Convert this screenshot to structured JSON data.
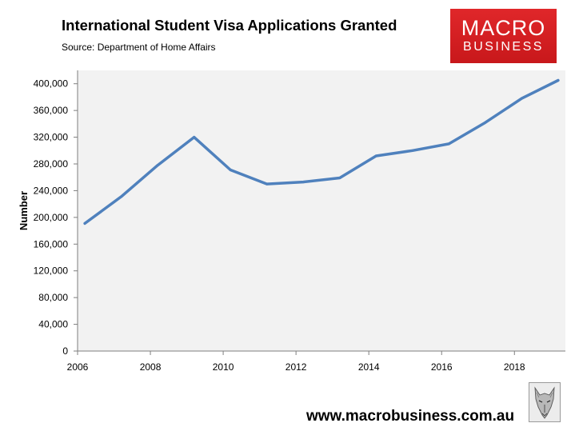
{
  "header": {
    "title": "International Student Visa Applications Granted",
    "source": "Source: Department of Home Affairs"
  },
  "logo": {
    "line1": "MACRO",
    "line2": "BUSINESS",
    "color": "#d71f22"
  },
  "footer": {
    "url": "www.macrobusiness.com.au",
    "icon": "wolf-logo-icon"
  },
  "chart_data": {
    "type": "line",
    "title": "International Student Visa Applications Granted",
    "subtitle": "Source: Department of Home Affairs",
    "xlabel": "",
    "ylabel": "Number",
    "x": [
      2006.2,
      2007.2,
      2008.2,
      2009.2,
      2010.2,
      2011.2,
      2012.2,
      2013.2,
      2014.2,
      2015.2,
      2016.2,
      2017.2,
      2018.2,
      2019.2
    ],
    "series": [
      {
        "values": [
          191000,
          231000,
          278000,
          320000,
          271000,
          250000,
          253000,
          259000,
          292000,
          300000,
          310000,
          342000,
          378000,
          405000
        ],
        "color": "#4f81bd"
      }
    ],
    "xlim": [
      2006,
      2019.4
    ],
    "ylim": [
      0,
      420000
    ],
    "xticks": [
      2006,
      2008,
      2010,
      2012,
      2014,
      2016,
      2018
    ],
    "yticks": [
      0,
      40000,
      80000,
      120000,
      160000,
      200000,
      240000,
      280000,
      320000,
      360000,
      400000
    ],
    "ytick_labels": [
      "0",
      "40,000",
      "80,000",
      "120,000",
      "160,000",
      "200,000",
      "240,000",
      "280,000",
      "320,000",
      "360,000",
      "400,000"
    ],
    "grid": false,
    "plot_background": "#f2f2f2"
  }
}
